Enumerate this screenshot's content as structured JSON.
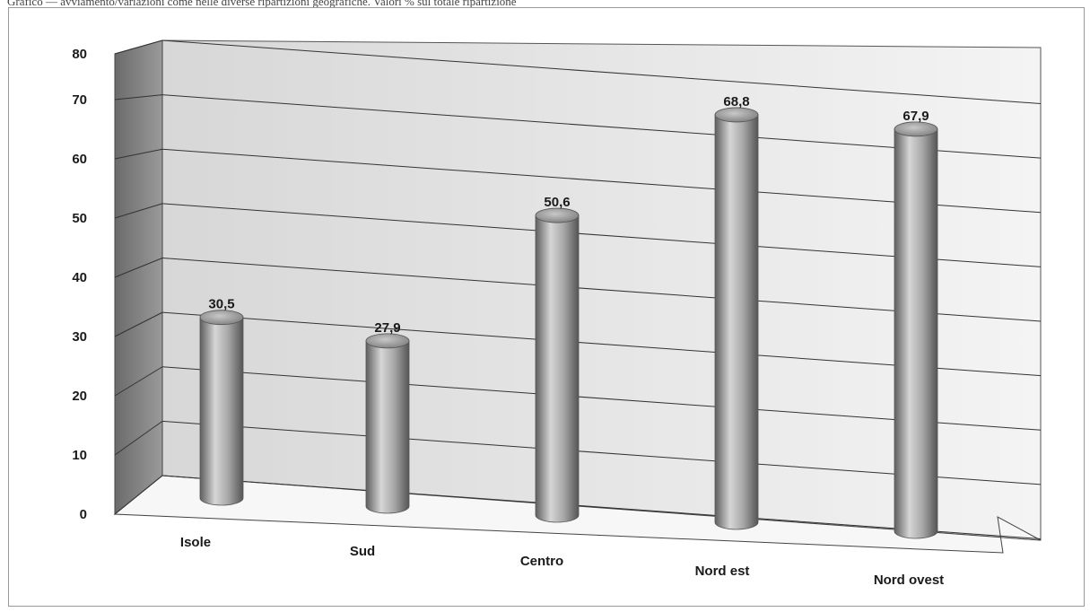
{
  "caption": "Grafico — avviamento/variazioni come nelle diverse ripartizioni geografiche. Valori % sul totale ripartizione",
  "chart_data": {
    "type": "bar",
    "style": "3d-cylinder",
    "title": "",
    "xlabel": "",
    "ylabel": "",
    "categories": [
      "Isole",
      "Sud",
      "Centro",
      "Nord est",
      "Nord ovest"
    ],
    "values": [
      30.5,
      27.9,
      50.6,
      68.8,
      67.9
    ],
    "data_labels": [
      "30,5",
      "27,9",
      "50,6",
      "68,8",
      "67,9"
    ],
    "ylim": [
      0,
      80
    ],
    "yticks": [
      "0",
      "10",
      "20",
      "30",
      "40",
      "50",
      "60",
      "70",
      "80"
    ],
    "grid": true,
    "legend": "none",
    "bar_color": "#8c8c8c"
  }
}
